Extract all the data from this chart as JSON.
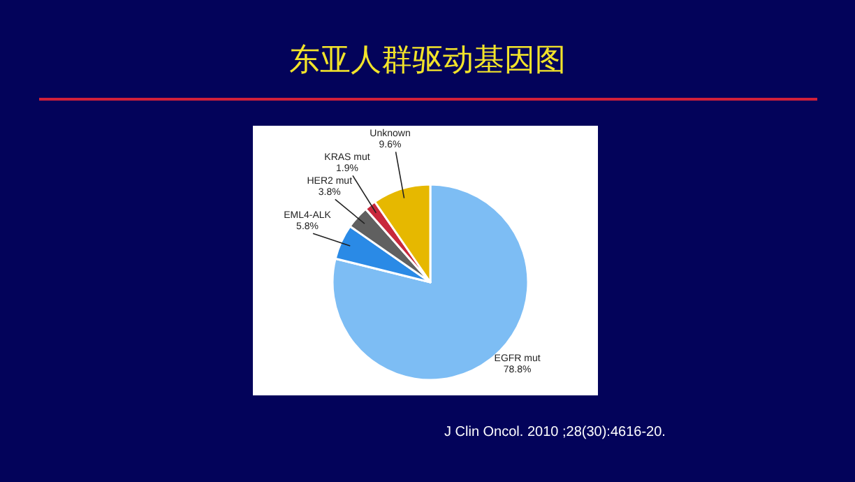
{
  "chart_data": {
    "type": "pie",
    "title": "东亚人群驱动基因图",
    "categories": [
      "EGFR mut",
      "EML4-ALK",
      "HER2 mut",
      "KRAS mut",
      "Unknown"
    ],
    "values": [
      78.8,
      5.8,
      3.8,
      1.9,
      9.6
    ],
    "value_labels": [
      "78.8%",
      "5.8%",
      "3.8%",
      "1.9%",
      "9.6%"
    ],
    "colors": [
      "#7dbdf4",
      "#2a8ae6",
      "#606060",
      "#c8283c",
      "#e6b800"
    ],
    "annotations": [
      "J Clin Oncol. 2010 ;28(30):4616-20."
    ]
  }
}
